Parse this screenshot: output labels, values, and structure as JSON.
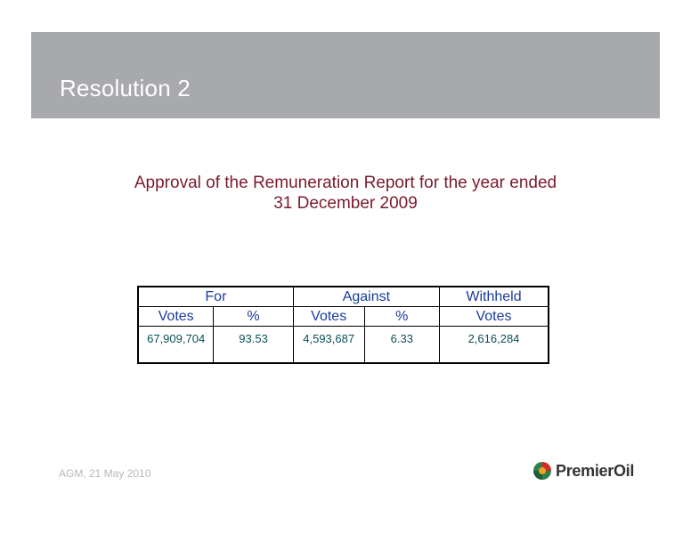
{
  "slide": {
    "title": "Resolution 2",
    "subtitle_line1": "Approval of the Remuneration Report for the year ended",
    "subtitle_line2": "31 December 2009"
  },
  "table": {
    "group_headers": [
      "For",
      "Against",
      "Withheld"
    ],
    "sub_headers": [
      "Votes",
      "%",
      "Votes",
      "%",
      "Votes"
    ],
    "row": [
      "67,909,704",
      "93.53",
      "4,593,687",
      "6.33",
      "2,616,284"
    ]
  },
  "footer": {
    "text": "AGM, 21 May 2010"
  },
  "logo": {
    "name": "PremierOil",
    "icon": "globe-icon"
  },
  "colors": {
    "band": "#a7a9ac",
    "subtitle": "#7a1a2c",
    "header_text": "#1a3d9a",
    "cell_text": "#0b4f57"
  }
}
